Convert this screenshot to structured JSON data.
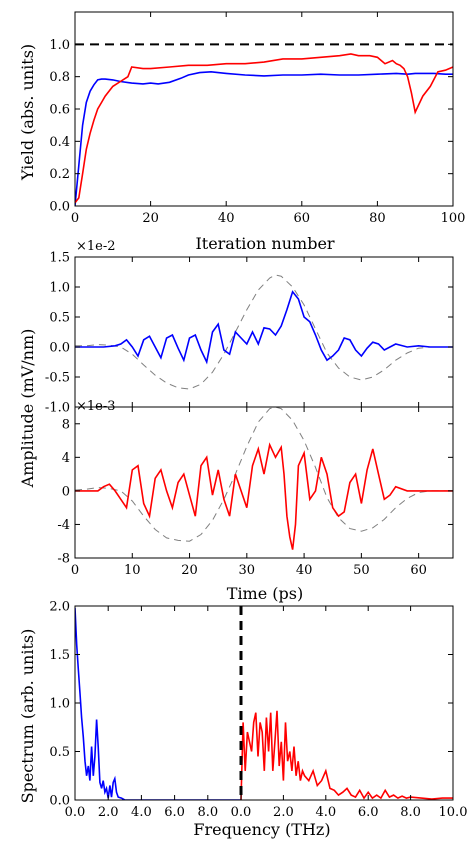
{
  "chart_data": [
    {
      "type": "line",
      "xlabel": "Iteration number",
      "ylabel": "Yield (abs. units)",
      "xlim": [
        0,
        100
      ],
      "ylim": [
        0,
        1.2
      ],
      "xticks": [
        "0",
        "20",
        "40",
        "60",
        "80",
        "100"
      ],
      "yticks": [
        "0.0",
        "0.2",
        "0.4",
        "0.6",
        "0.8",
        "1.0"
      ],
      "reference_line": {
        "y": 1.0,
        "style": "dashed",
        "color": "#000000"
      },
      "series": [
        {
          "color": "#0000ff",
          "x": [
            0,
            1,
            2,
            3,
            4,
            5,
            6,
            7,
            8,
            10,
            12,
            15,
            18,
            20,
            22,
            25,
            28,
            30,
            33,
            36,
            40,
            45,
            50,
            55,
            60,
            65,
            70,
            75,
            80,
            85,
            88,
            90,
            92,
            95,
            98,
            100
          ],
          "y": [
            0,
            0.25,
            0.5,
            0.64,
            0.71,
            0.75,
            0.78,
            0.785,
            0.785,
            0.78,
            0.77,
            0.76,
            0.755,
            0.76,
            0.755,
            0.765,
            0.79,
            0.81,
            0.825,
            0.83,
            0.82,
            0.81,
            0.805,
            0.81,
            0.81,
            0.815,
            0.81,
            0.81,
            0.815,
            0.82,
            0.815,
            0.82,
            0.82,
            0.82,
            0.815,
            0.815
          ]
        },
        {
          "color": "#ff0000",
          "x": [
            0,
            1,
            2,
            3,
            4,
            5,
            6,
            7,
            8,
            10,
            12,
            14,
            15,
            18,
            20,
            25,
            30,
            35,
            40,
            45,
            50,
            55,
            60,
            65,
            70,
            73,
            75,
            78,
            80,
            82,
            84,
            85,
            86,
            87,
            88,
            89,
            90,
            92,
            94,
            96,
            98,
            100
          ],
          "y": [
            0.02,
            0.05,
            0.2,
            0.35,
            0.45,
            0.53,
            0.6,
            0.64,
            0.68,
            0.74,
            0.77,
            0.8,
            0.86,
            0.85,
            0.85,
            0.86,
            0.87,
            0.87,
            0.88,
            0.88,
            0.89,
            0.91,
            0.91,
            0.92,
            0.93,
            0.94,
            0.93,
            0.93,
            0.92,
            0.88,
            0.9,
            0.88,
            0.87,
            0.85,
            0.8,
            0.7,
            0.58,
            0.68,
            0.74,
            0.83,
            0.84,
            0.86
          ]
        }
      ]
    },
    {
      "type": "line",
      "ylabel": "Amplitude (mV/nm)",
      "exponent": "×1e-2",
      "xlim": [
        0,
        66
      ],
      "ylim": [
        -1.0,
        1.5
      ],
      "yticks": [
        "1.5",
        "1.0",
        "0.5",
        "0.0",
        "-0.5",
        "-1.0"
      ],
      "series": [
        {
          "color": "#0000ff",
          "style": "solid",
          "x": [
            0,
            5,
            7,
            8,
            9,
            10,
            11,
            12,
            13,
            14,
            15,
            16,
            17,
            18,
            19,
            20,
            21,
            22,
            23,
            24,
            25,
            26,
            27,
            28,
            29,
            30,
            31,
            32,
            33,
            34,
            35,
            36,
            37,
            38,
            39,
            40,
            41,
            42,
            43,
            44,
            45,
            46,
            47,
            48,
            49,
            50,
            51,
            52,
            53,
            54,
            56,
            58,
            60,
            62,
            64,
            66
          ],
          "y": [
            0,
            0,
            0.02,
            0.05,
            0.12,
            0.0,
            -0.15,
            0.12,
            0.18,
            0.0,
            -0.18,
            0.15,
            0.2,
            -0.02,
            -0.22,
            0.15,
            0.2,
            -0.05,
            -0.25,
            0.25,
            0.38,
            -0.05,
            -0.12,
            0.25,
            0.15,
            0.05,
            0.25,
            0.05,
            0.32,
            0.3,
            0.2,
            0.35,
            0.62,
            0.92,
            0.8,
            0.5,
            0.42,
            0.2,
            -0.05,
            -0.22,
            -0.15,
            -0.05,
            0.15,
            0.12,
            -0.05,
            -0.15,
            -0.02,
            0.08,
            0.05,
            -0.05,
            0.05,
            0.0,
            0.02,
            0.0,
            0.0,
            0.0
          ]
        },
        {
          "color": "#808080",
          "style": "dashed",
          "x": [
            0,
            2,
            4,
            6,
            8,
            10,
            12,
            14,
            16,
            18,
            20,
            22,
            24,
            26,
            28,
            30,
            32,
            34,
            35,
            36,
            38,
            40,
            42,
            44,
            46,
            48,
            50,
            52,
            54,
            56,
            58,
            60,
            62,
            64,
            66
          ],
          "y": [
            0.02,
            0.02,
            0.04,
            0.03,
            0.0,
            -0.12,
            -0.3,
            -0.47,
            -0.6,
            -0.68,
            -0.7,
            -0.62,
            -0.42,
            -0.12,
            0.25,
            0.62,
            0.95,
            1.15,
            1.2,
            1.18,
            1.0,
            0.7,
            0.3,
            -0.1,
            -0.35,
            -0.5,
            -0.55,
            -0.5,
            -0.38,
            -0.22,
            -0.1,
            -0.02,
            0.0,
            0.0,
            0.0
          ]
        }
      ]
    },
    {
      "type": "line",
      "xlabel": "Time (ps)",
      "exponent": "×1e-3",
      "xlim": [
        0,
        66
      ],
      "ylim": [
        -8,
        10
      ],
      "xticks": [
        "0",
        "10",
        "20",
        "30",
        "40",
        "50",
        "60"
      ],
      "yticks": [
        "8",
        "4",
        "0",
        "-4",
        "-8"
      ],
      "series": [
        {
          "color": "#ff0000",
          "style": "solid",
          "x": [
            0,
            4,
            5,
            6,
            7,
            8,
            9,
            10,
            11,
            12,
            13,
            14,
            15,
            16,
            17,
            18,
            19,
            20,
            21,
            22,
            23,
            24,
            25,
            26,
            27,
            28,
            29,
            30,
            31,
            32,
            33,
            34,
            35,
            36,
            36.5,
            37,
            37.5,
            38,
            38.5,
            39,
            40,
            41,
            42,
            43,
            44,
            45,
            46,
            47,
            48,
            49,
            50,
            51,
            52,
            53,
            54,
            55,
            56,
            58,
            60,
            62,
            64,
            66
          ],
          "y": [
            0,
            0,
            0.5,
            0.8,
            0.0,
            -1.0,
            -2.0,
            2.5,
            3.0,
            -1.5,
            -3.0,
            1.5,
            2.5,
            0.0,
            -2.0,
            1.0,
            2.0,
            -0.5,
            -3.0,
            3.0,
            4.0,
            -0.5,
            2.5,
            -1.0,
            -3.0,
            2.0,
            0.0,
            -2.0,
            3.0,
            5.0,
            2.0,
            5.5,
            4.0,
            5.2,
            2.0,
            -3.0,
            -5.5,
            -7.0,
            -4.0,
            3.0,
            4.5,
            -1.0,
            0.0,
            4.0,
            2.0,
            -2.0,
            -3.0,
            -2.5,
            1.0,
            2.0,
            -1.5,
            2.5,
            5.0,
            2.0,
            -1.0,
            -0.5,
            0.5,
            0.0,
            0.0,
            0.0,
            0.0,
            0.0
          ]
        },
        {
          "color": "#808080",
          "style": "dashed",
          "x": [
            0,
            2,
            4,
            6,
            8,
            10,
            12,
            14,
            16,
            18,
            20,
            22,
            24,
            26,
            28,
            30,
            32,
            34,
            35,
            36,
            38,
            40,
            42,
            44,
            46,
            48,
            50,
            52,
            54,
            56,
            58,
            60,
            62,
            64,
            66
          ],
          "y": [
            0.1,
            0.2,
            0.4,
            0.3,
            0.0,
            -1.2,
            -3.0,
            -4.6,
            -5.6,
            -5.9,
            -6.0,
            -5.2,
            -3.5,
            -1.0,
            2.0,
            5.3,
            8.2,
            9.8,
            10.0,
            9.8,
            8.4,
            6.0,
            2.8,
            -0.8,
            -3.2,
            -4.5,
            -4.8,
            -4.4,
            -3.4,
            -2.0,
            -0.9,
            -0.2,
            0.0,
            0.0,
            0.0
          ]
        }
      ]
    },
    {
      "type": "line",
      "xlabel": "Frequency (THz)",
      "ylabel": "Spectrum (arb. units)",
      "ylim": [
        0,
        2.0
      ],
      "xticks": [
        "0.0",
        "2.0",
        "4.0",
        "6.0",
        "8.0",
        "0.0",
        "2.0",
        "4.0",
        "6.0",
        "8.0",
        "10.0"
      ],
      "yticks": [
        "0.0",
        "0.5",
        "1.0",
        "1.5",
        "2.0"
      ],
      "divider": {
        "style": "dashed",
        "color": "#000000"
      },
      "series": [
        {
          "color": "#0000ff",
          "note": "left half",
          "x": [
            0,
            0.1,
            0.2,
            0.3,
            0.4,
            0.5,
            0.6,
            0.7,
            0.8,
            0.9,
            1.0,
            1.1,
            1.2,
            1.3,
            1.4,
            1.5,
            1.6,
            1.7,
            1.8,
            1.9,
            2.0,
            2.1,
            2.2,
            2.3,
            2.4,
            2.5,
            2.6,
            2.8,
            3.0,
            3.5,
            4.0,
            6.0,
            8.0,
            10.0
          ],
          "y": [
            1.98,
            1.6,
            1.35,
            1.1,
            0.85,
            0.65,
            0.4,
            0.25,
            0.35,
            0.2,
            0.55,
            0.25,
            0.45,
            0.83,
            0.55,
            0.18,
            0.12,
            0.2,
            0.08,
            0.12,
            0.02,
            0.15,
            0.03,
            0.18,
            0.22,
            0.08,
            0.03,
            0.02,
            0.0,
            0.0,
            0.0,
            0.0,
            0.0,
            0.0
          ]
        },
        {
          "color": "#ff0000",
          "note": "right half",
          "x": [
            0,
            0.1,
            0.2,
            0.3,
            0.4,
            0.5,
            0.6,
            0.7,
            0.8,
            0.9,
            1.0,
            1.1,
            1.2,
            1.3,
            1.4,
            1.5,
            1.6,
            1.7,
            1.8,
            1.9,
            2.0,
            2.1,
            2.2,
            2.3,
            2.4,
            2.5,
            2.6,
            2.7,
            2.8,
            2.9,
            3.0,
            3.2,
            3.4,
            3.6,
            3.8,
            4.0,
            4.2,
            4.4,
            4.6,
            4.8,
            5.0,
            5.2,
            5.4,
            5.6,
            5.8,
            6.0,
            6.2,
            6.4,
            6.6,
            6.8,
            7.0,
            7.2,
            7.4,
            7.6,
            7.8,
            8.0,
            8.5,
            9.0,
            9.5,
            10.0
          ],
          "y": [
            0.0,
            0.8,
            0.3,
            0.7,
            0.6,
            0.5,
            0.8,
            0.9,
            0.45,
            0.8,
            0.7,
            0.3,
            0.85,
            0.5,
            0.9,
            0.3,
            0.6,
            0.92,
            0.35,
            0.6,
            0.2,
            0.8,
            0.4,
            0.5,
            0.3,
            0.55,
            0.25,
            0.4,
            0.2,
            0.3,
            0.25,
            0.2,
            0.3,
            0.15,
            0.2,
            0.3,
            0.12,
            0.1,
            0.05,
            0.08,
            0.12,
            0.05,
            0.03,
            0.1,
            0.02,
            0.08,
            0.02,
            0.05,
            0.02,
            0.1,
            0.03,
            0.05,
            0.02,
            0.04,
            0.02,
            0.03,
            0.02,
            0.01,
            0.02,
            0.02
          ]
        }
      ]
    }
  ]
}
